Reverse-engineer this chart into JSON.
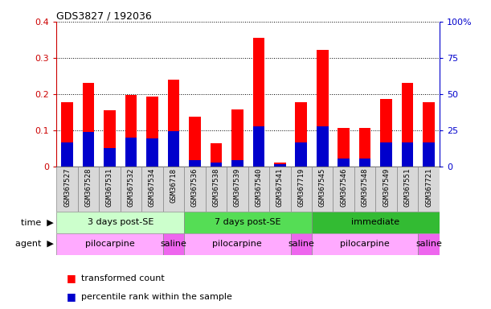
{
  "title": "GDS3827 / 192036",
  "samples": [
    "GSM367527",
    "GSM367528",
    "GSM367531",
    "GSM367532",
    "GSM367534",
    "GSM36718",
    "GSM367536",
    "GSM367538",
    "GSM367539",
    "GSM367540",
    "GSM367541",
    "GSM367719",
    "GSM367545",
    "GSM367546",
    "GSM367548",
    "GSM367549",
    "GSM367551",
    "GSM367721"
  ],
  "transformed_count": [
    0.178,
    0.232,
    0.155,
    0.198,
    0.193,
    0.241,
    0.138,
    0.065,
    0.158,
    0.356,
    0.012,
    0.178,
    0.323,
    0.108,
    0.108,
    0.188,
    0.232,
    0.178
  ],
  "percentile_rank": [
    0.068,
    0.095,
    0.052,
    0.08,
    0.078,
    0.098,
    0.018,
    0.012,
    0.018,
    0.112,
    0.008,
    0.068,
    0.112,
    0.022,
    0.022,
    0.068,
    0.068,
    0.068
  ],
  "bar_color": "#ff0000",
  "percentile_color": "#0000cc",
  "ylim": [
    0,
    0.4
  ],
  "y2lim": [
    0,
    100
  ],
  "yticks": [
    0,
    0.1,
    0.2,
    0.3,
    0.4
  ],
  "y2ticks": [
    0,
    25,
    50,
    75,
    100
  ],
  "ytick_labels": [
    "0",
    "0.1",
    "0.2",
    "0.3",
    "0.4"
  ],
  "y2tick_labels": [
    "0",
    "25",
    "50",
    "75",
    "100%"
  ],
  "time_groups": [
    {
      "label": "3 days post-SE",
      "start": 0,
      "end": 6,
      "color": "#ccffcc"
    },
    {
      "label": "7 days post-SE",
      "start": 6,
      "end": 12,
      "color": "#55dd55"
    },
    {
      "label": "immediate",
      "start": 12,
      "end": 18,
      "color": "#33bb33"
    }
  ],
  "agent_groups": [
    {
      "label": "pilocarpine",
      "start": 0,
      "end": 5,
      "color": "#ffaaff"
    },
    {
      "label": "saline",
      "start": 5,
      "end": 6,
      "color": "#ee66ee"
    },
    {
      "label": "pilocarpine",
      "start": 6,
      "end": 11,
      "color": "#ffaaff"
    },
    {
      "label": "saline",
      "start": 11,
      "end": 12,
      "color": "#ee66ee"
    },
    {
      "label": "pilocarpine",
      "start": 12,
      "end": 17,
      "color": "#ffaaff"
    },
    {
      "label": "saline",
      "start": 17,
      "end": 18,
      "color": "#ee66ee"
    }
  ],
  "legend_red": "transformed count",
  "legend_blue": "percentile rank within the sample",
  "left_axis_color": "#cc0000",
  "right_axis_color": "#0000cc",
  "bar_width": 0.55,
  "sample_bg_color": "#d8d8d8",
  "sample_edge_color": "#888888"
}
